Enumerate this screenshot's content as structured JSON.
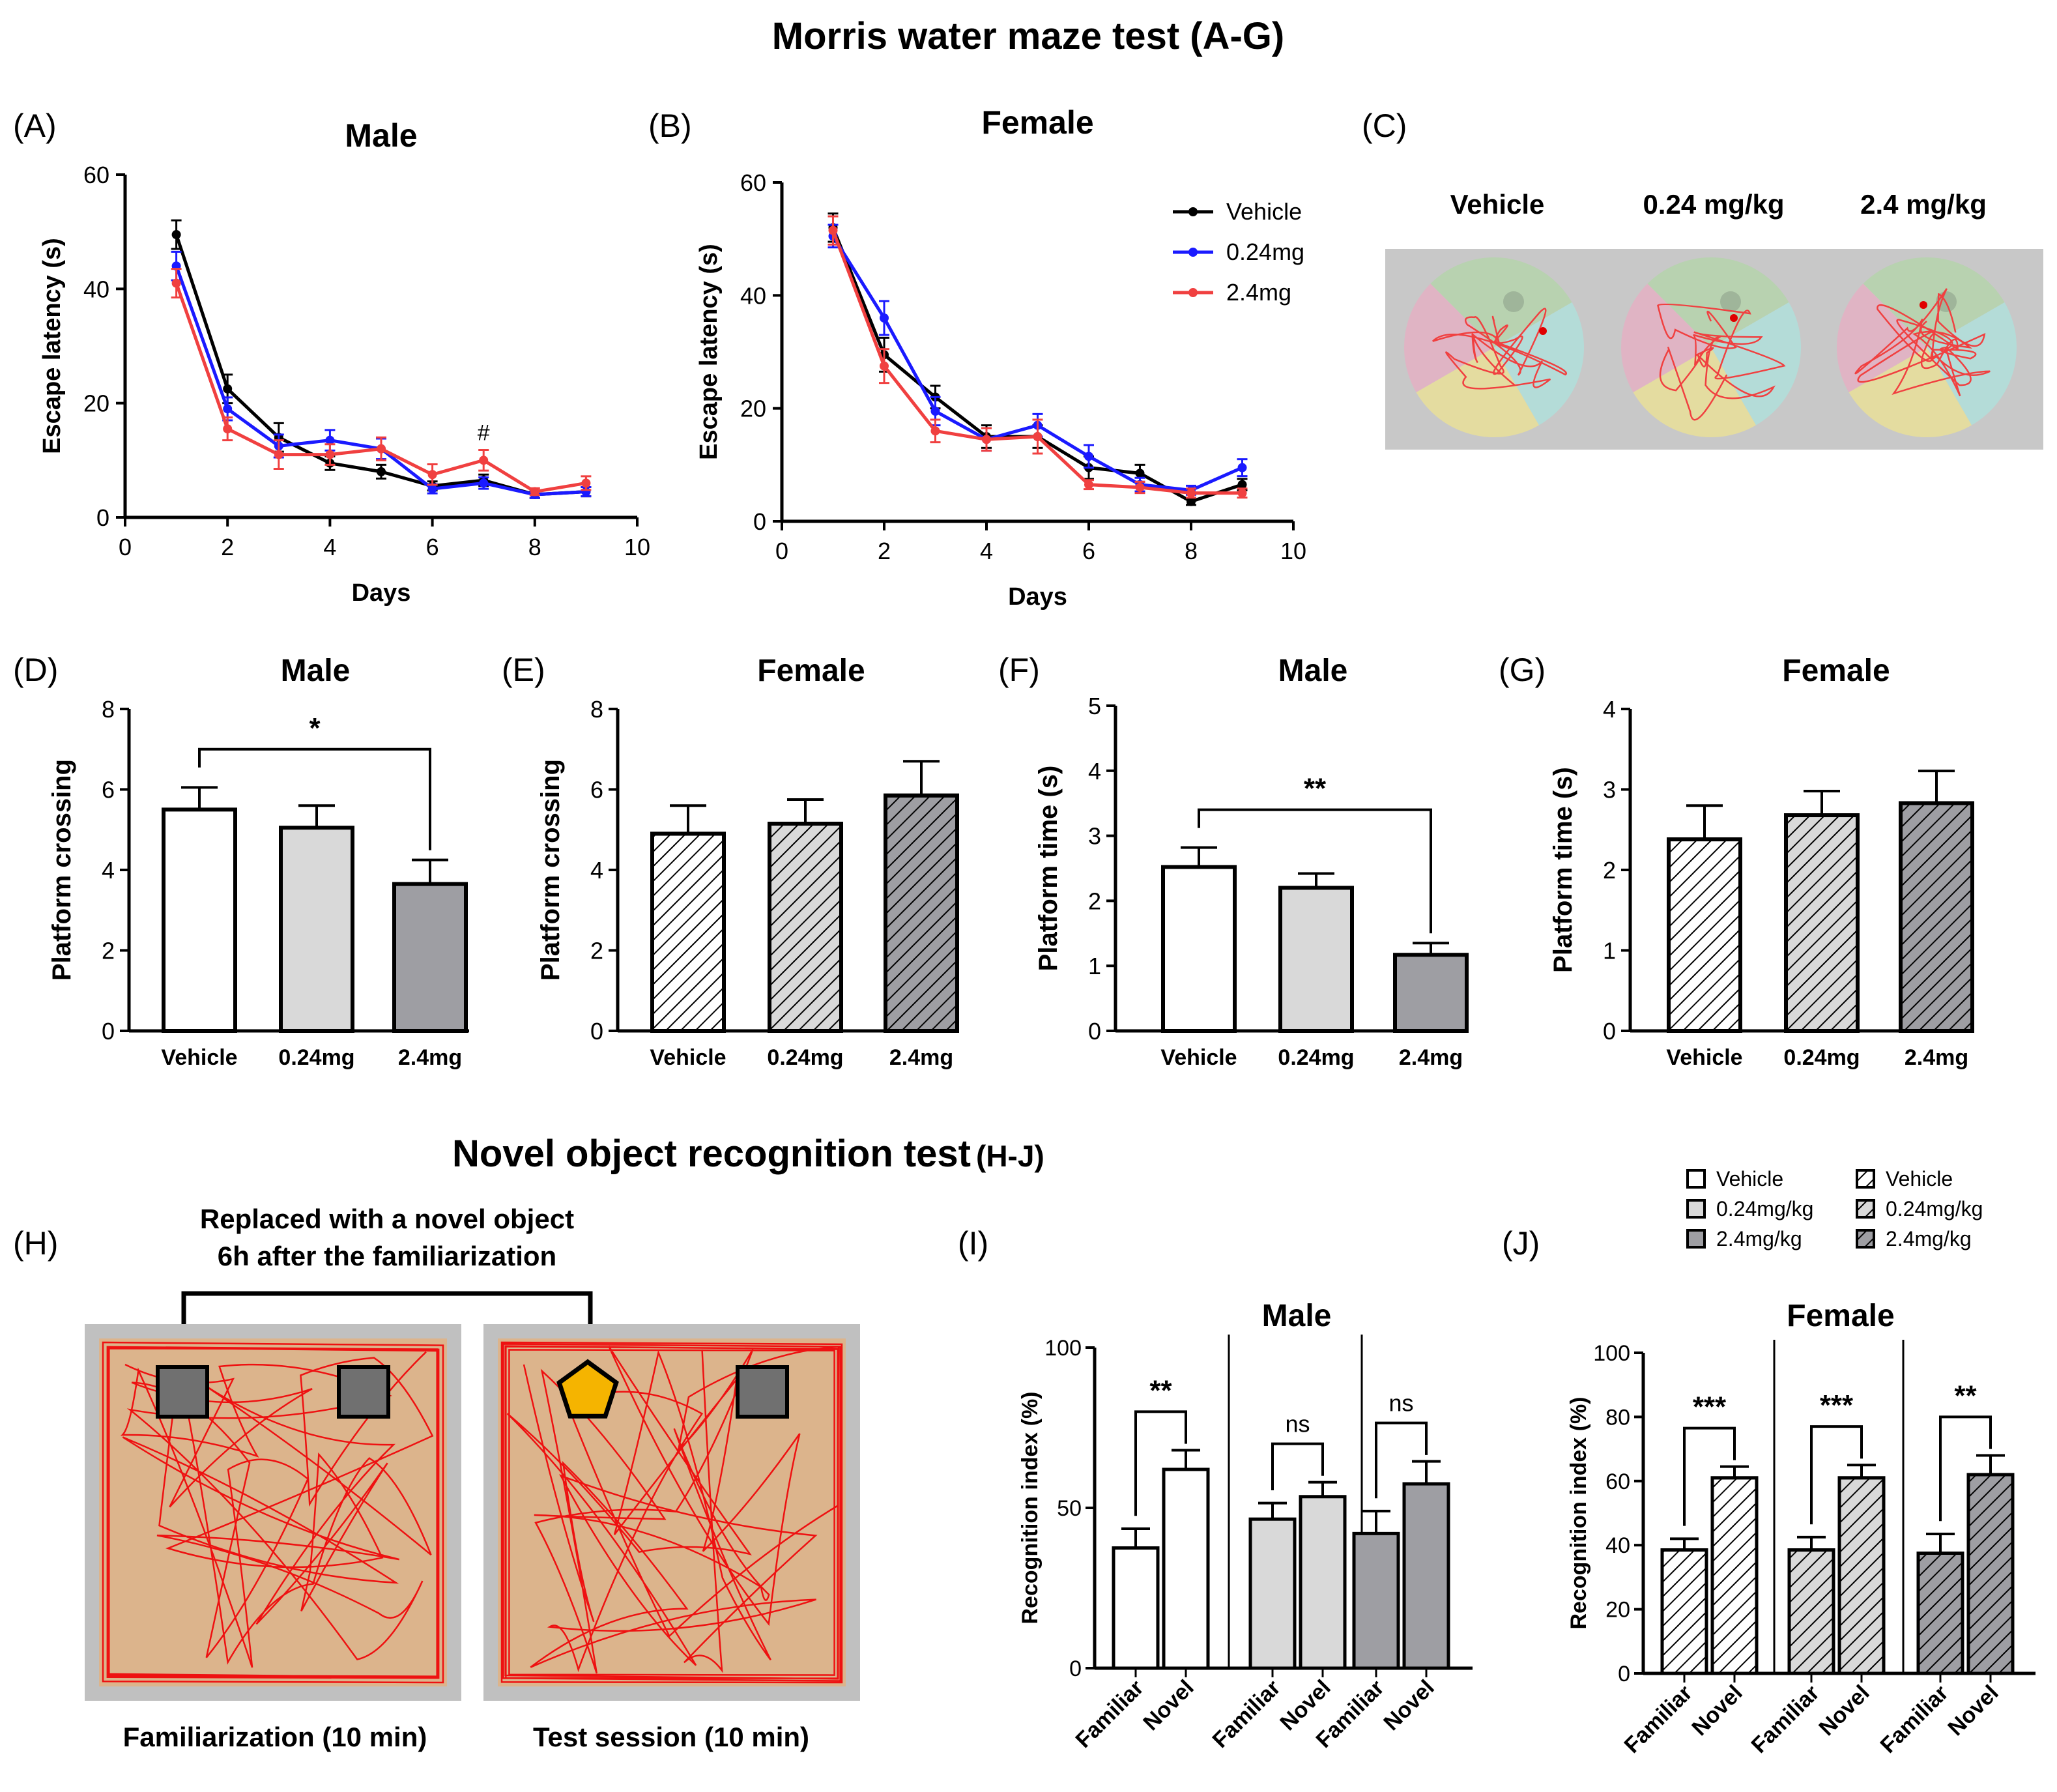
{
  "headings": {
    "mwm": "Morris water maze test (A-G)",
    "nor_main": "Novel object recognition test",
    "nor_suffix": "(H-J)"
  },
  "colors": {
    "vehicle": "#000000",
    "low": "#1a1aff",
    "high": "#f04040",
    "bar_white": "#ffffff",
    "bar_light": "#d9d9d9",
    "bar_dark": "#9e9ea3",
    "arena_floor": "#dcb48c",
    "arena_wall": "#c0c0c0",
    "track": "#ee1111",
    "pentagon": "#f5b400"
  },
  "chart_data": [
    {
      "id": "A",
      "letter": "(A)",
      "type": "line",
      "title": "Male",
      "xlabel": "Days",
      "ylabel": "Escape latency (s)",
      "xlim": [
        0,
        10
      ],
      "ylim": [
        0,
        60
      ],
      "xticks": [
        0,
        2,
        4,
        6,
        8,
        10
      ],
      "yticks": [
        0,
        20,
        40,
        60
      ],
      "x": [
        1,
        2,
        3,
        4,
        5,
        6,
        7,
        8,
        9
      ],
      "series": [
        {
          "name": "Vehicle",
          "color": "#000000",
          "values": [
            49.5,
            22.5,
            14,
            9.5,
            8,
            5.5,
            6.5,
            4,
            4.5
          ],
          "errors": [
            2.5,
            2.5,
            2.5,
            1.2,
            1.2,
            0.8,
            1,
            0.6,
            0.8
          ]
        },
        {
          "name": "0.24mg",
          "color": "#1a1aff",
          "values": [
            44,
            19,
            12.5,
            13.5,
            12,
            5,
            6,
            4,
            4.5
          ],
          "errors": [
            2.5,
            2,
            2,
            1.8,
            1.8,
            0.8,
            1,
            0.6,
            0.8
          ]
        },
        {
          "name": "2.4mg",
          "color": "#f04040",
          "values": [
            41,
            15.5,
            11,
            11,
            12,
            7.5,
            10,
            4.5,
            6
          ],
          "errors": [
            2.5,
            2,
            2.5,
            1.8,
            2,
            1.8,
            1.8,
            0.6,
            1.2
          ]
        }
      ],
      "annotations": [
        {
          "text": "#",
          "x": 7,
          "y": 13.5
        }
      ]
    },
    {
      "id": "B",
      "letter": "(B)",
      "type": "line",
      "title": "Female",
      "xlabel": "Days",
      "ylabel": "Escape latency (s)",
      "xlim": [
        0,
        10
      ],
      "ylim": [
        0,
        60
      ],
      "xticks": [
        0,
        2,
        4,
        6,
        8,
        10
      ],
      "yticks": [
        0,
        20,
        40,
        60
      ],
      "x": [
        1,
        2,
        3,
        4,
        5,
        6,
        7,
        8,
        9
      ],
      "series": [
        {
          "name": "Vehicle",
          "color": "#000000",
          "values": [
            52,
            29.5,
            22,
            15,
            15,
            9.5,
            8.5,
            3.5,
            6.5
          ],
          "errors": [
            2.5,
            3,
            2,
            2,
            2,
            2,
            1.5,
            0.6,
            1
          ]
        },
        {
          "name": "0.24mg",
          "color": "#1a1aff",
          "values": [
            50.5,
            36,
            19.5,
            14.5,
            17,
            11.5,
            6.5,
            5.5,
            9.5
          ],
          "errors": [
            2,
            3,
            2.5,
            2,
            2,
            2,
            1.2,
            0.8,
            1.5
          ]
        },
        {
          "name": "2.4mg",
          "color": "#f04040",
          "values": [
            51.5,
            27.5,
            16,
            14.5,
            15,
            6.5,
            6,
            5,
            5
          ],
          "errors": [
            2.5,
            3,
            2,
            2,
            3,
            0.8,
            1,
            0.8,
            0.8
          ]
        }
      ],
      "legend": {
        "placement": "top-right",
        "entries": [
          "Vehicle",
          "0.24mg",
          "2.4mg"
        ]
      }
    },
    {
      "id": "C",
      "letter": "(C)",
      "type": "image",
      "labels": [
        "Vehicle",
        "0.24 mg/kg",
        "2.4 mg/kg"
      ]
    },
    {
      "id": "D",
      "letter": "(D)",
      "type": "bar",
      "title": "Male",
      "ylabel": "Platform crossing",
      "categories": [
        "Vehicle",
        "0.24mg",
        "2.4mg"
      ],
      "values": [
        5.5,
        5.05,
        3.65
      ],
      "errors": [
        0.55,
        0.55,
        0.6
      ],
      "fills": [
        "white",
        "light",
        "dark"
      ],
      "hatched": false,
      "ylim": [
        0,
        8
      ],
      "yticks": [
        0,
        2,
        4,
        6,
        8
      ],
      "significance": [
        {
          "from": 0,
          "to": 2,
          "label": "*",
          "y": 7
        }
      ]
    },
    {
      "id": "E",
      "letter": "(E)",
      "type": "bar",
      "title": "Female",
      "ylabel": "Platform crossing",
      "categories": [
        "Vehicle",
        "0.24mg",
        "2.4mg"
      ],
      "values": [
        4.9,
        5.15,
        5.85
      ],
      "errors": [
        0.7,
        0.6,
        0.85
      ],
      "fills": [
        "white",
        "light",
        "dark"
      ],
      "hatched": true,
      "ylim": [
        0,
        8
      ],
      "yticks": [
        0,
        2,
        4,
        6,
        8
      ],
      "significance": []
    },
    {
      "id": "F",
      "letter": "(F)",
      "type": "bar",
      "title": "Male",
      "ylabel": "Platform time (s)",
      "categories": [
        "Vehicle",
        "0.24mg",
        "2.4mg"
      ],
      "values": [
        2.52,
        2.2,
        1.17
      ],
      "errors": [
        0.3,
        0.22,
        0.18
      ],
      "fills": [
        "white",
        "light",
        "dark"
      ],
      "hatched": false,
      "ylim": [
        0,
        5
      ],
      "yticks": [
        0,
        1,
        2,
        3,
        4,
        5
      ],
      "significance": [
        {
          "from": 0,
          "to": 2,
          "label": "**",
          "y": 3.4
        }
      ]
    },
    {
      "id": "G",
      "letter": "(G)",
      "type": "bar",
      "title": "Female",
      "ylabel": "Platform time (s)",
      "categories": [
        "Vehicle",
        "0.24mg",
        "2.4mg"
      ],
      "values": [
        2.38,
        2.68,
        2.83
      ],
      "errors": [
        0.42,
        0.3,
        0.4
      ],
      "fills": [
        "white",
        "light",
        "dark"
      ],
      "hatched": true,
      "ylim": [
        0,
        4
      ],
      "yticks": [
        0,
        1,
        2,
        3,
        4
      ],
      "significance": []
    },
    {
      "id": "H",
      "letter": "(H)",
      "type": "image",
      "caption_top": [
        "Replaced with a novel object",
        "6h after the familiarization"
      ],
      "labels": [
        "Familiarization (10 min)",
        "Test session (10 min)"
      ]
    },
    {
      "id": "I",
      "letter": "(I)",
      "type": "bar",
      "title": "Male",
      "ylabel": "Recognition index (%)",
      "ylim": [
        0,
        100
      ],
      "yticks": [
        0,
        50,
        100
      ],
      "hatched": false,
      "groups": [
        {
          "fill": "white",
          "categories": [
            "Familiar",
            "Novel"
          ],
          "values": [
            37.5,
            62
          ],
          "errors": [
            6,
            6
          ],
          "significance": "**"
        },
        {
          "fill": "light",
          "categories": [
            "Familiar",
            "Novel"
          ],
          "values": [
            46.5,
            53.5
          ],
          "errors": [
            5,
            4.5
          ],
          "significance": "ns"
        },
        {
          "fill": "dark",
          "categories": [
            "Familiar",
            "Novel"
          ],
          "values": [
            42,
            57.5
          ],
          "errors": [
            7,
            7
          ],
          "significance": "ns"
        }
      ]
    },
    {
      "id": "J",
      "letter": "(J)",
      "type": "bar",
      "title": "Female",
      "ylabel": "Recognition index (%)",
      "ylim": [
        0,
        100
      ],
      "yticks": [
        0,
        20,
        40,
        60,
        80,
        100
      ],
      "hatched": true,
      "groups": [
        {
          "fill": "white",
          "categories": [
            "Familiar",
            "Novel"
          ],
          "values": [
            38.5,
            61
          ],
          "errors": [
            3.5,
            3.5
          ],
          "significance": "***"
        },
        {
          "fill": "light",
          "categories": [
            "Familiar",
            "Novel"
          ],
          "values": [
            38.5,
            61
          ],
          "errors": [
            4,
            4
          ],
          "significance": "***"
        },
        {
          "fill": "dark",
          "categories": [
            "Familiar",
            "Novel"
          ],
          "values": [
            37.5,
            62
          ],
          "errors": [
            6,
            6
          ],
          "significance": "**"
        }
      ]
    }
  ],
  "nor_legend": {
    "entries": [
      {
        "label": "Vehicle",
        "fill": "white",
        "hatched": false
      },
      {
        "label": "0.24mg/kg",
        "fill": "light",
        "hatched": false
      },
      {
        "label": "2.4mg/kg",
        "fill": "dark",
        "hatched": false
      },
      {
        "label": "Vehicle",
        "fill": "white",
        "hatched": true
      },
      {
        "label": "0.24mg/kg",
        "fill": "light",
        "hatched": true
      },
      {
        "label": "2.4mg/kg",
        "fill": "dark",
        "hatched": true
      }
    ]
  }
}
